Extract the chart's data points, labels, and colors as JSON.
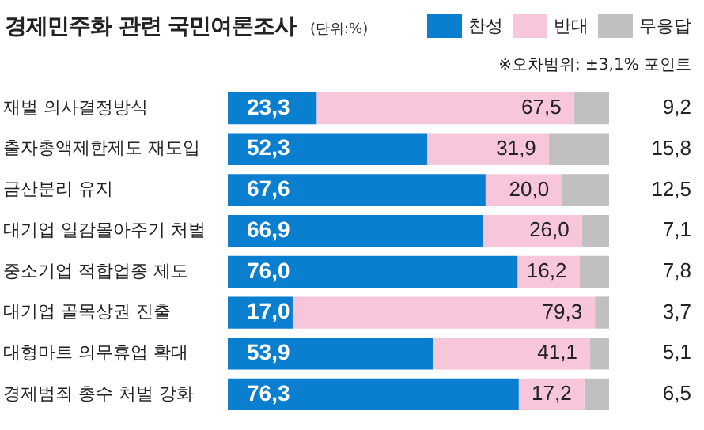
{
  "chart_data": {
    "type": "bar",
    "orientation": "horizontal",
    "stacked": true,
    "title": "경제민주화 관련 국민여론조사",
    "annotations": [
      "(단위:%)",
      "※오차범위: ±3,1% 포인트"
    ],
    "categories": [
      "재벌 의사결정방식",
      "출자총액제한제도 재도입",
      "금산분리 유지",
      "대기업 일감몰아주기 처벌",
      "중소기업 적합업종 제도",
      "대기업 골목상권 진출",
      "대형마트 의무휴업 확대",
      "경제범죄 총수 처벌 강화"
    ],
    "series": [
      {
        "name": "찬성",
        "color": "#0a7fcf",
        "values": [
          23.3,
          52.3,
          67.6,
          66.9,
          76.0,
          17.0,
          53.9,
          76.3
        ],
        "value_labels": [
          "23,3",
          "52,3",
          "67,6",
          "66,9",
          "76,0",
          "17,0",
          "53,9",
          "76,3"
        ]
      },
      {
        "name": "반대",
        "color": "#f7c6da",
        "values": [
          67.5,
          31.9,
          20.0,
          26.0,
          16.2,
          79.3,
          41.1,
          17.2
        ],
        "value_labels": [
          "67,5",
          "31,9",
          "20,0",
          "26,0",
          "16,2",
          "79,3",
          "41,1",
          "17,2"
        ]
      },
      {
        "name": "무응답",
        "color": "#c0c0c0",
        "values": [
          9.2,
          15.8,
          12.5,
          7.1,
          7.8,
          3.7,
          5.1,
          6.5
        ],
        "value_labels": [
          "9,2",
          "15,8",
          "12,5",
          "7,1",
          "7,8",
          "3,7",
          "5,1",
          "6,5"
        ]
      }
    ],
    "xlim": [
      0,
      100
    ],
    "tick_labels": false,
    "legend": "top right"
  }
}
